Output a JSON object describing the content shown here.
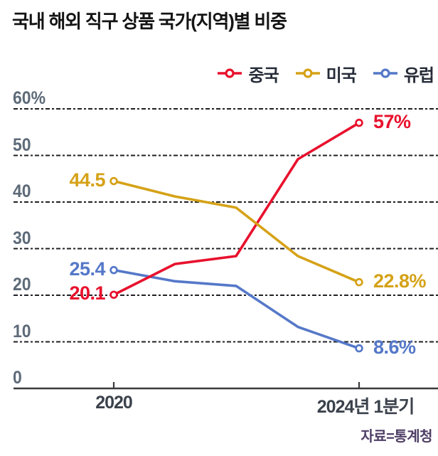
{
  "title": "국내 해외 직구 상품 국가(지역)별 비중",
  "source": "자료=통계청",
  "x_axis": {
    "left_label": "2020",
    "right_label": "2024년 1분기"
  },
  "chart_data": {
    "type": "line",
    "title": "국내 해외 직구 상품 국가(지역)별 비중",
    "x_tick_labels": [
      "2020",
      "2024년 1분기"
    ],
    "num_points": 5,
    "y_tick_labels": [
      "60%",
      "50",
      "40",
      "30",
      "20",
      "10",
      "0"
    ],
    "y_tick_values": [
      60,
      50,
      40,
      30,
      20,
      10,
      0
    ],
    "ylim": [
      0,
      60
    ],
    "grid": "dashed-horizontal",
    "legend_position": "top-right",
    "series": [
      {
        "name": "중국",
        "id": "china",
        "color": "#e8112d",
        "values": [
          20.1,
          26.7,
          28.4,
          49.2,
          57.0
        ],
        "start_label": "20.1",
        "end_label": "57%"
      },
      {
        "name": "미국",
        "id": "usa",
        "color": "#d5a217",
        "values": [
          44.5,
          41.2,
          38.8,
          28.4,
          22.8
        ],
        "start_label": "44.5",
        "end_label": "22.8%"
      },
      {
        "name": "유럽",
        "id": "europe",
        "color": "#5578c8",
        "values": [
          25.4,
          23.0,
          22.0,
          13.2,
          8.6
        ],
        "start_label": "25.4",
        "end_label": "8.6%"
      }
    ]
  },
  "colors": {
    "axis": "#3a3a3e",
    "gridline": "#212125",
    "y_tick_text": "#5d6a78",
    "x_tick_text": "#3b424c"
  }
}
